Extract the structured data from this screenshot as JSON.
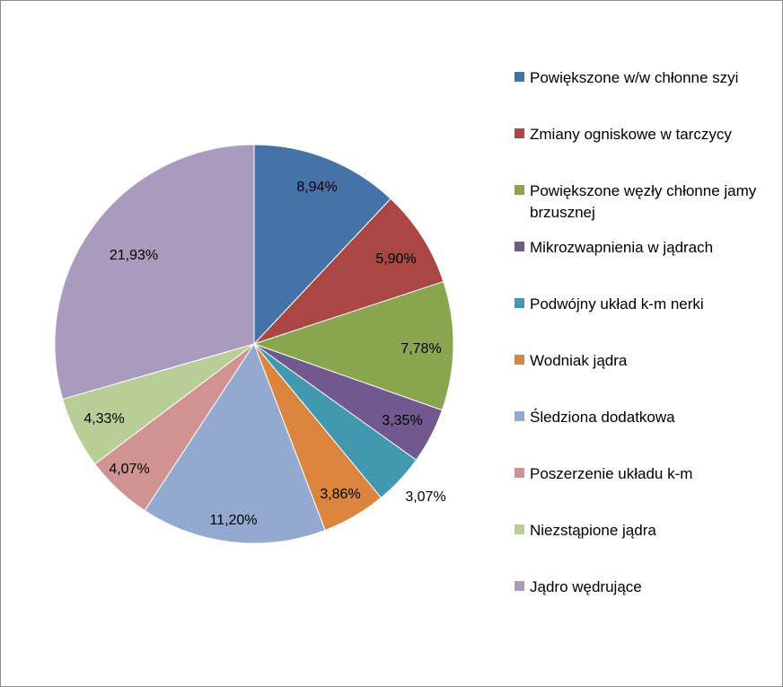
{
  "chart_data": {
    "type": "pie",
    "slices": [
      {
        "name": "Powiększone w/w chłonne szyi",
        "value": 8.94,
        "label": "8,94%",
        "color": "#4572A7"
      },
      {
        "name": "Zmiany ogniskowe w tarczycy",
        "value": 5.9,
        "label": "5,90%",
        "color": "#AA4643"
      },
      {
        "name": "Powiększone węzły chłonne jamy brzusznej",
        "value": 7.78,
        "label": "7,78%",
        "color": "#89A54E"
      },
      {
        "name": "Mikrozwapnienia w jądrach",
        "value": 3.35,
        "label": "3,35%",
        "color": "#71588F"
      },
      {
        "name": "Podwójny układ k-m nerki",
        "value": 3.07,
        "label": "3,07%",
        "color": "#4198AF"
      },
      {
        "name": "Wodniak jądra",
        "value": 3.86,
        "label": "3,86%",
        "color": "#DB843D"
      },
      {
        "name": "Śledziona dodatkowa",
        "value": 11.2,
        "label": "11,20%",
        "color": "#93A9CF"
      },
      {
        "name": "Poszerzenie układu k-m",
        "value": 4.07,
        "label": "4,07%",
        "color": "#D19392"
      },
      {
        "name": "Niezstąpione jądra",
        "value": 4.33,
        "label": "4,33%",
        "color": "#B9CD96"
      },
      {
        "name": "Jądro wędrujące",
        "value": 21.93,
        "label": "21,93%",
        "color": "#A99BBD"
      }
    ],
    "legend_placement": "right"
  }
}
